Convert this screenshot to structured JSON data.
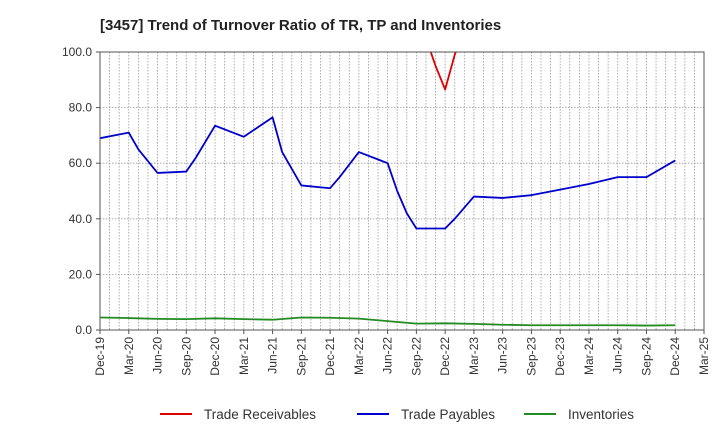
{
  "chart_data": {
    "type": "line",
    "title": "[3457]  Trend of Turnover Ratio of TR, TP and Inventories",
    "xlabel": "",
    "ylabel": "",
    "ylim": [
      0,
      100
    ],
    "yticks": [
      "0.0",
      "20.0",
      "40.0",
      "60.0",
      "80.0",
      "100.0"
    ],
    "grid": true,
    "legend_position": "bottom",
    "categories": [
      "Dec-19",
      "Jan-20",
      "Feb-20",
      "Mar-20",
      "Apr-20",
      "May-20",
      "Jun-20",
      "Jul-20",
      "Aug-20",
      "Sep-20",
      "Oct-20",
      "Nov-20",
      "Dec-20",
      "Jan-21",
      "Feb-21",
      "Mar-21",
      "Apr-21",
      "May-21",
      "Jun-21",
      "Jul-21",
      "Aug-21",
      "Sep-21",
      "Oct-21",
      "Nov-21",
      "Dec-21",
      "Jan-22",
      "Feb-22",
      "Mar-22",
      "Apr-22",
      "May-22",
      "Jun-22",
      "Jul-22",
      "Aug-22",
      "Sep-22",
      "Oct-22",
      "Nov-22",
      "Dec-22",
      "Jan-23",
      "Feb-23",
      "Mar-23",
      "Apr-23",
      "May-23",
      "Jun-23",
      "Jul-23",
      "Aug-23",
      "Sep-23",
      "Oct-23",
      "Nov-23",
      "Dec-23",
      "Jan-24",
      "Feb-24",
      "Mar-24",
      "Apr-24",
      "May-24",
      "Jun-24",
      "Jul-24",
      "Aug-24",
      "Sep-24",
      "Oct-24",
      "Nov-24",
      "Dec-24",
      "Jan-25",
      "Feb-25",
      "Mar-25"
    ],
    "tick_labels": [
      "Dec-19",
      "Mar-20",
      "Jun-20",
      "Sep-20",
      "Dec-20",
      "Mar-21",
      "Jun-21",
      "Sep-21",
      "Dec-21",
      "Mar-22",
      "Jun-22",
      "Sep-22",
      "Dec-22",
      "Mar-23",
      "Jun-23",
      "Sep-23",
      "Dec-23",
      "Mar-24",
      "Jun-24",
      "Sep-24",
      "Dec-24",
      "Mar-25"
    ],
    "series": [
      {
        "name": "Trade Receivables",
        "color": "#e00000",
        "points": [
          [
            "Oct-22",
            105.0
          ],
          [
            "Nov-22",
            95.0
          ],
          [
            "Dec-22",
            86.5
          ],
          [
            "Jan-23",
            99.0
          ],
          [
            "Feb-23",
            108.0
          ]
        ]
      },
      {
        "name": "Trade Payables",
        "color": "#0000cc",
        "points": [
          [
            "Dec-19",
            69.0
          ],
          [
            "Mar-20",
            71.0
          ],
          [
            "Apr-20",
            65.0
          ],
          [
            "Jun-20",
            56.5
          ],
          [
            "Sep-20",
            57.0
          ],
          [
            "Oct-20",
            62.0
          ],
          [
            "Dec-20",
            73.5
          ],
          [
            "Mar-21",
            69.5
          ],
          [
            "Jun-21",
            76.5
          ],
          [
            "Jul-21",
            64.0
          ],
          [
            "Sep-21",
            52.0
          ],
          [
            "Dec-21",
            51.0
          ],
          [
            "Jan-22",
            55.0
          ],
          [
            "Mar-22",
            64.0
          ],
          [
            "Jun-22",
            60.0
          ],
          [
            "Jul-22",
            50.0
          ],
          [
            "Aug-22",
            42.0
          ],
          [
            "Sep-22",
            36.5
          ],
          [
            "Dec-22",
            36.5
          ],
          [
            "Jan-23",
            40.0
          ],
          [
            "Mar-23",
            48.0
          ],
          [
            "Jun-23",
            47.5
          ],
          [
            "Sep-23",
            48.5
          ],
          [
            "Dec-23",
            50.5
          ],
          [
            "Mar-24",
            52.5
          ],
          [
            "Jun-24",
            55.0
          ],
          [
            "Sep-24",
            55.0
          ],
          [
            "Dec-24",
            61.0
          ]
        ]
      },
      {
        "name": "Inventories",
        "color": "#228b22",
        "points": [
          [
            "Dec-19",
            4.5
          ],
          [
            "Mar-20",
            4.3
          ],
          [
            "Jun-20",
            4.0
          ],
          [
            "Sep-20",
            3.9
          ],
          [
            "Dec-20",
            4.2
          ],
          [
            "Mar-21",
            3.9
          ],
          [
            "Jun-21",
            3.7
          ],
          [
            "Sep-21",
            4.5
          ],
          [
            "Dec-21",
            4.4
          ],
          [
            "Mar-22",
            4.1
          ],
          [
            "Jun-22",
            3.2
          ],
          [
            "Sep-22",
            2.3
          ],
          [
            "Dec-22",
            2.4
          ],
          [
            "Mar-23",
            2.2
          ],
          [
            "Jun-23",
            1.9
          ],
          [
            "Sep-23",
            1.7
          ],
          [
            "Dec-23",
            1.7
          ],
          [
            "Mar-24",
            1.7
          ],
          [
            "Jun-24",
            1.7
          ],
          [
            "Sep-24",
            1.6
          ],
          [
            "Dec-24",
            1.7
          ]
        ]
      }
    ]
  }
}
